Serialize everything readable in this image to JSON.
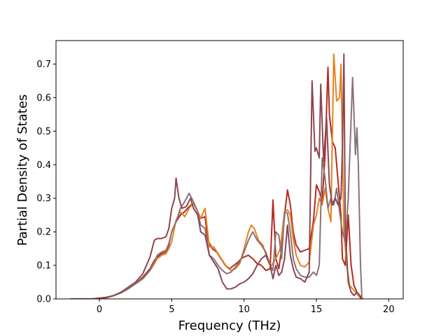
{
  "chart_data": {
    "type": "line",
    "title": "",
    "xlabel": "Frequency (THz)",
    "ylabel": "Partial Density of States",
    "xlim": [
      -3.0,
      21.0
    ],
    "ylim": [
      0.0,
      0.77
    ],
    "xticks": [
      0,
      5,
      10,
      15,
      20
    ],
    "yticks": [
      0.0,
      0.1,
      0.2,
      0.3,
      0.4,
      0.5,
      0.6,
      0.7
    ],
    "xtick_labels": [
      "0",
      "5",
      "10",
      "15",
      "20"
    ],
    "ytick_labels": [
      "0.0",
      "0.1",
      "0.2",
      "0.3",
      "0.4",
      "0.5",
      "0.6",
      "0.7"
    ],
    "grid": false,
    "legend": "none",
    "series": [
      {
        "color": "#b52a1e",
        "points": [
          [
            -2.0,
            0
          ],
          [
            -0.5,
            0
          ],
          [
            0.5,
            0.005
          ],
          [
            1.0,
            0.01
          ],
          [
            1.5,
            0.02
          ],
          [
            2.0,
            0.032
          ],
          [
            2.5,
            0.045
          ],
          [
            3.0,
            0.065
          ],
          [
            3.5,
            0.09
          ],
          [
            3.8,
            0.115
          ],
          [
            4.0,
            0.125
          ],
          [
            4.3,
            0.135
          ],
          [
            4.6,
            0.14
          ],
          [
            4.8,
            0.16
          ],
          [
            5.0,
            0.2
          ],
          [
            5.3,
            0.23
          ],
          [
            5.6,
            0.25
          ],
          [
            5.9,
            0.26
          ],
          [
            6.2,
            0.275
          ],
          [
            6.5,
            0.285
          ],
          [
            6.8,
            0.26
          ],
          [
            7.0,
            0.24
          ],
          [
            7.3,
            0.245
          ],
          [
            7.5,
            0.175
          ],
          [
            7.8,
            0.15
          ],
          [
            8.1,
            0.14
          ],
          [
            8.4,
            0.12
          ],
          [
            8.7,
            0.1
          ],
          [
            9.0,
            0.09
          ],
          [
            9.3,
            0.1
          ],
          [
            9.6,
            0.11
          ],
          [
            9.8,
            0.12
          ],
          [
            10.0,
            0.125
          ],
          [
            10.3,
            0.13
          ],
          [
            10.6,
            0.12
          ],
          [
            10.9,
            0.105
          ],
          [
            11.2,
            0.1
          ],
          [
            11.5,
            0.085
          ],
          [
            11.8,
            0.09
          ],
          [
            12.0,
            0.295
          ],
          [
            12.2,
            0.12
          ],
          [
            12.4,
            0.09
          ],
          [
            12.6,
            0.15
          ],
          [
            12.8,
            0.25
          ],
          [
            13.0,
            0.325
          ],
          [
            13.2,
            0.28
          ],
          [
            13.4,
            0.2
          ],
          [
            13.6,
            0.16
          ],
          [
            13.9,
            0.14
          ],
          [
            14.2,
            0.145
          ],
          [
            14.5,
            0.15
          ],
          [
            14.8,
            0.235
          ],
          [
            15.0,
            0.34
          ],
          [
            15.2,
            0.32
          ],
          [
            15.4,
            0.29
          ],
          [
            15.6,
            0.43
          ],
          [
            15.8,
            0.69
          ],
          [
            15.9,
            0.55
          ],
          [
            16.1,
            0.47
          ],
          [
            16.3,
            0.45
          ],
          [
            16.5,
            0.35
          ],
          [
            16.7,
            0.25
          ],
          [
            16.8,
            0.12
          ],
          [
            17.0,
            0.1
          ],
          [
            17.2,
            0.25
          ],
          [
            17.4,
            0.1
          ],
          [
            17.6,
            0.04
          ],
          [
            17.8,
            0.02
          ],
          [
            18.0,
            0.01
          ],
          [
            18.2,
            0
          ]
        ]
      },
      {
        "color": "#e6821e",
        "points": [
          [
            -2.0,
            0
          ],
          [
            -0.5,
            0
          ],
          [
            0.5,
            0.004
          ],
          [
            1.0,
            0.01
          ],
          [
            1.5,
            0.02
          ],
          [
            2.0,
            0.03
          ],
          [
            2.5,
            0.045
          ],
          [
            3.0,
            0.06
          ],
          [
            3.5,
            0.085
          ],
          [
            3.8,
            0.105
          ],
          [
            4.0,
            0.12
          ],
          [
            4.3,
            0.13
          ],
          [
            4.6,
            0.135
          ],
          [
            4.8,
            0.15
          ],
          [
            5.0,
            0.17
          ],
          [
            5.3,
            0.235
          ],
          [
            5.6,
            0.26
          ],
          [
            5.9,
            0.245
          ],
          [
            6.2,
            0.27
          ],
          [
            6.5,
            0.285
          ],
          [
            6.8,
            0.26
          ],
          [
            7.0,
            0.24
          ],
          [
            7.3,
            0.27
          ],
          [
            7.6,
            0.155
          ],
          [
            7.9,
            0.155
          ],
          [
            8.2,
            0.135
          ],
          [
            8.5,
            0.115
          ],
          [
            8.8,
            0.095
          ],
          [
            9.1,
            0.085
          ],
          [
            9.4,
            0.09
          ],
          [
            9.7,
            0.105
          ],
          [
            10.0,
            0.15
          ],
          [
            10.3,
            0.2
          ],
          [
            10.5,
            0.22
          ],
          [
            10.7,
            0.21
          ],
          [
            11.0,
            0.175
          ],
          [
            11.3,
            0.16
          ],
          [
            11.6,
            0.12
          ],
          [
            11.9,
            0.1
          ],
          [
            12.2,
            0.12
          ],
          [
            12.5,
            0.15
          ],
          [
            12.8,
            0.26
          ],
          [
            13.0,
            0.265
          ],
          [
            13.2,
            0.25
          ],
          [
            13.4,
            0.18
          ],
          [
            13.6,
            0.13
          ],
          [
            13.9,
            0.1
          ],
          [
            14.2,
            0.095
          ],
          [
            14.5,
            0.11
          ],
          [
            14.8,
            0.22
          ],
          [
            15.0,
            0.25
          ],
          [
            15.2,
            0.3
          ],
          [
            15.4,
            0.28
          ],
          [
            15.6,
            0.33
          ],
          [
            15.8,
            0.27
          ],
          [
            16.0,
            0.23
          ],
          [
            16.2,
            0.73
          ],
          [
            16.4,
            0.59
          ],
          [
            16.6,
            0.6
          ],
          [
            16.7,
            0.7
          ],
          [
            16.9,
            0.2
          ],
          [
            17.1,
            0.1
          ],
          [
            17.3,
            0.04
          ],
          [
            17.5,
            0.03
          ],
          [
            17.7,
            0.02
          ],
          [
            17.9,
            0.01
          ],
          [
            18.1,
            0
          ]
        ]
      },
      {
        "color": "#8a7378",
        "points": [
          [
            -2.0,
            0
          ],
          [
            -0.5,
            0
          ],
          [
            0.5,
            0.004
          ],
          [
            1.0,
            0.01
          ],
          [
            1.5,
            0.018
          ],
          [
            2.0,
            0.03
          ],
          [
            2.5,
            0.045
          ],
          [
            3.0,
            0.06
          ],
          [
            3.5,
            0.085
          ],
          [
            3.8,
            0.11
          ],
          [
            4.0,
            0.13
          ],
          [
            4.3,
            0.14
          ],
          [
            4.6,
            0.145
          ],
          [
            4.8,
            0.165
          ],
          [
            5.0,
            0.2
          ],
          [
            5.3,
            0.23
          ],
          [
            5.6,
            0.27
          ],
          [
            5.9,
            0.29
          ],
          [
            6.2,
            0.315
          ],
          [
            6.5,
            0.29
          ],
          [
            6.8,
            0.26
          ],
          [
            7.0,
            0.22
          ],
          [
            7.3,
            0.21
          ],
          [
            7.6,
            0.13
          ],
          [
            7.9,
            0.12
          ],
          [
            8.2,
            0.1
          ],
          [
            8.5,
            0.085
          ],
          [
            8.8,
            0.075
          ],
          [
            9.1,
            0.08
          ],
          [
            9.4,
            0.095
          ],
          [
            9.7,
            0.11
          ],
          [
            10.0,
            0.14
          ],
          [
            10.3,
            0.175
          ],
          [
            10.6,
            0.2
          ],
          [
            10.9,
            0.175
          ],
          [
            11.2,
            0.16
          ],
          [
            11.5,
            0.14
          ],
          [
            11.8,
            0.1
          ],
          [
            12.0,
            0.085
          ],
          [
            12.2,
            0.2
          ],
          [
            12.4,
            0.19
          ],
          [
            12.6,
            0.12
          ],
          [
            12.8,
            0.26
          ],
          [
            13.0,
            0.255
          ],
          [
            13.2,
            0.2
          ],
          [
            13.4,
            0.12
          ],
          [
            13.6,
            0.09
          ],
          [
            13.9,
            0.07
          ],
          [
            14.2,
            0.065
          ],
          [
            14.5,
            0.065
          ],
          [
            14.8,
            0.08
          ],
          [
            15.0,
            0.07
          ],
          [
            15.2,
            0.1
          ],
          [
            15.4,
            0.42
          ],
          [
            15.6,
            0.36
          ],
          [
            15.8,
            0.27
          ],
          [
            16.0,
            0.3
          ],
          [
            16.2,
            0.28
          ],
          [
            16.4,
            0.33
          ],
          [
            16.6,
            0.26
          ],
          [
            16.8,
            0.2
          ],
          [
            17.0,
            0.17
          ],
          [
            17.2,
            0.3
          ],
          [
            17.5,
            0.66
          ],
          [
            17.7,
            0.43
          ],
          [
            17.8,
            0.51
          ],
          [
            17.9,
            0.4
          ],
          [
            18.05,
            0.1
          ],
          [
            18.15,
            0
          ]
        ]
      },
      {
        "color": "#8b4650",
        "points": [
          [
            -2.0,
            0
          ],
          [
            -0.5,
            0
          ],
          [
            0.5,
            0.004
          ],
          [
            1.0,
            0.01
          ],
          [
            1.5,
            0.02
          ],
          [
            2.0,
            0.035
          ],
          [
            2.5,
            0.05
          ],
          [
            3.0,
            0.075
          ],
          [
            3.5,
            0.125
          ],
          [
            3.8,
            0.175
          ],
          [
            4.0,
            0.18
          ],
          [
            4.3,
            0.18
          ],
          [
            4.6,
            0.185
          ],
          [
            4.8,
            0.21
          ],
          [
            5.0,
            0.27
          ],
          [
            5.2,
            0.3
          ],
          [
            5.3,
            0.36
          ],
          [
            5.5,
            0.3
          ],
          [
            5.7,
            0.27
          ],
          [
            6.0,
            0.275
          ],
          [
            6.3,
            0.3
          ],
          [
            6.5,
            0.27
          ],
          [
            6.8,
            0.25
          ],
          [
            7.0,
            0.2
          ],
          [
            7.3,
            0.19
          ],
          [
            7.6,
            0.13
          ],
          [
            7.9,
            0.11
          ],
          [
            8.2,
            0.09
          ],
          [
            8.5,
            0.05
          ],
          [
            8.8,
            0.03
          ],
          [
            9.1,
            0.03
          ],
          [
            9.4,
            0.035
          ],
          [
            9.7,
            0.045
          ],
          [
            10.0,
            0.05
          ],
          [
            10.3,
            0.06
          ],
          [
            10.6,
            0.075
          ],
          [
            10.9,
            0.1
          ],
          [
            11.2,
            0.12
          ],
          [
            11.5,
            0.13
          ],
          [
            11.8,
            0.1
          ],
          [
            12.0,
            0.06
          ],
          [
            12.2,
            0.1
          ],
          [
            12.4,
            0.07
          ],
          [
            12.6,
            0.08
          ],
          [
            12.8,
            0.12
          ],
          [
            13.0,
            0.22
          ],
          [
            13.2,
            0.13
          ],
          [
            13.4,
            0.09
          ],
          [
            13.6,
            0.065
          ],
          [
            13.9,
            0.06
          ],
          [
            14.2,
            0.05
          ],
          [
            14.5,
            0.08
          ],
          [
            14.7,
            0.65
          ],
          [
            14.9,
            0.44
          ],
          [
            15.0,
            0.45
          ],
          [
            15.2,
            0.42
          ],
          [
            15.3,
            0.64
          ],
          [
            15.5,
            0.41
          ],
          [
            15.7,
            0.54
          ],
          [
            15.9,
            0.34
          ],
          [
            16.1,
            0.28
          ],
          [
            16.3,
            0.3
          ],
          [
            16.5,
            0.28
          ],
          [
            16.7,
            0.3
          ],
          [
            16.8,
            0.45
          ],
          [
            16.9,
            0.73
          ],
          [
            17.0,
            0.2
          ],
          [
            17.2,
            0.05
          ],
          [
            17.4,
            0.02
          ],
          [
            17.6,
            0.01
          ],
          [
            17.8,
            0.02
          ],
          [
            18.0,
            0.01
          ],
          [
            18.1,
            0
          ]
        ]
      }
    ]
  }
}
